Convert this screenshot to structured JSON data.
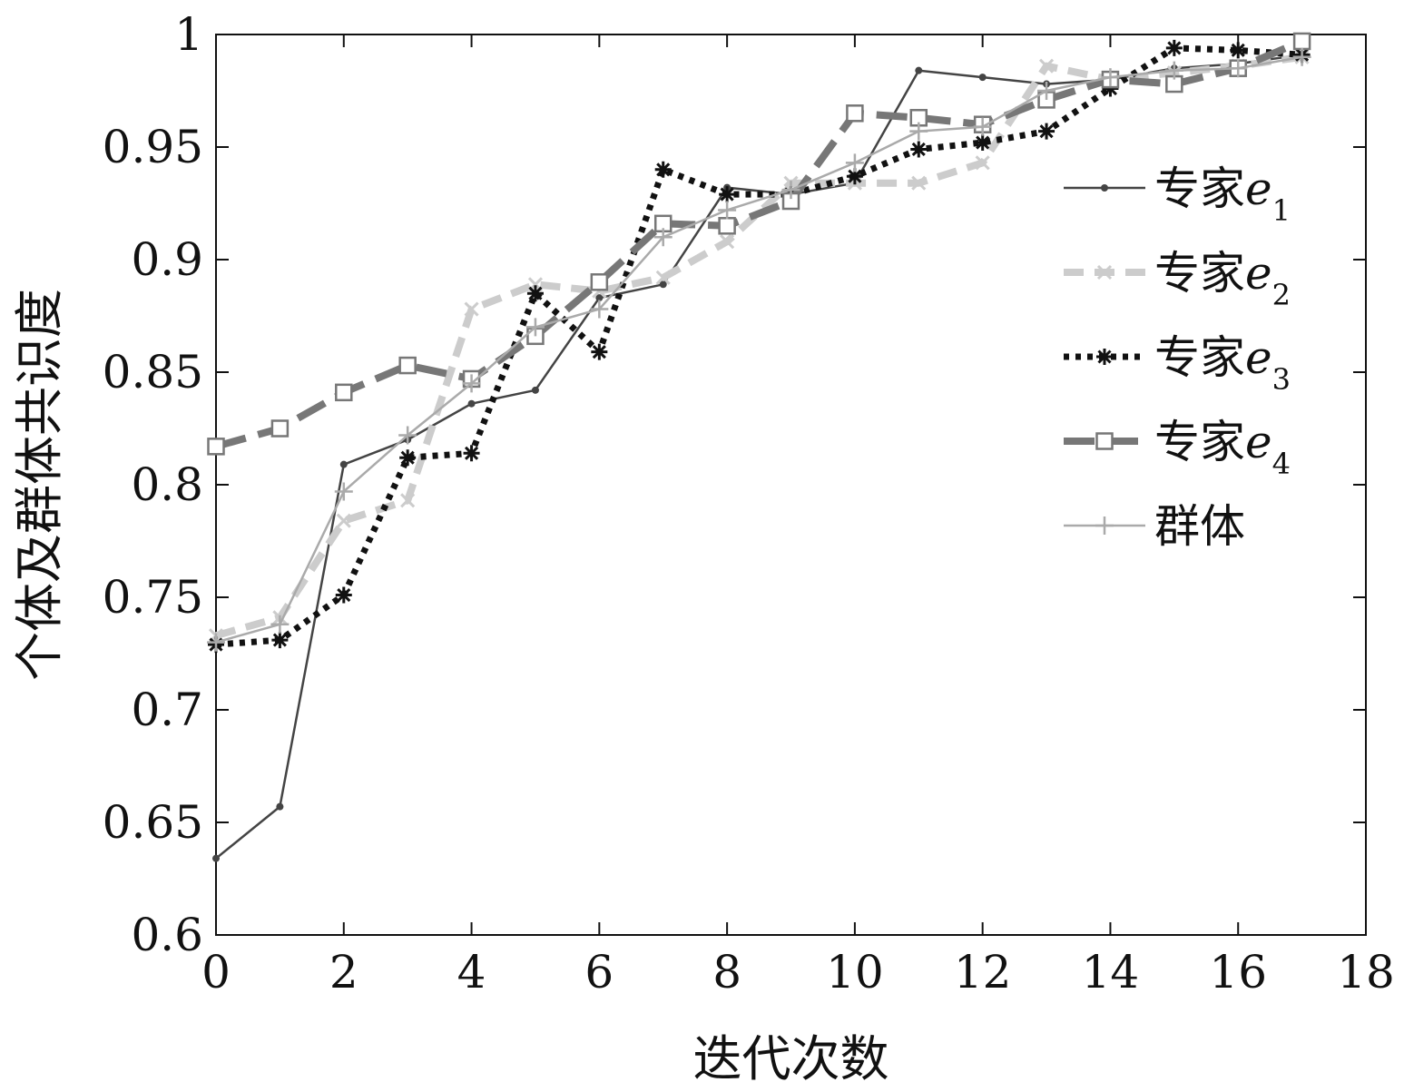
{
  "chart_data": {
    "type": "line",
    "title": "",
    "xlabel": "迭代次数",
    "ylabel": "个体及群体共识度",
    "xlim": [
      0,
      18
    ],
    "ylim": [
      0.6,
      1
    ],
    "xticks": [
      0,
      2,
      4,
      6,
      8,
      10,
      12,
      14,
      16,
      18
    ],
    "xtick_labels": [
      "0",
      "2",
      "4",
      "6",
      "8",
      "10",
      "12",
      "14",
      "16",
      "18"
    ],
    "yticks": [
      0.6,
      0.65,
      0.7,
      0.75,
      0.8,
      0.85,
      0.9,
      0.95,
      1
    ],
    "ytick_labels": [
      "0.6",
      "0.65",
      "0.7",
      "0.75",
      "0.8",
      "0.85",
      "0.9",
      "0.95",
      "1"
    ],
    "grid": false,
    "legend_position": "right",
    "x": [
      0,
      1,
      2,
      3,
      4,
      5,
      6,
      7,
      8,
      9,
      10,
      11,
      12,
      13,
      14,
      15,
      16,
      17
    ],
    "series": [
      {
        "name": "专家e₁",
        "legend_prefix": "专家",
        "legend_var": "e",
        "legend_sub": "1",
        "color": "#444444",
        "marker": "dot",
        "dash": "solid",
        "values": [
          0.634,
          0.657,
          0.809,
          0.82,
          0.836,
          0.842,
          0.883,
          0.889,
          0.932,
          0.929,
          0.934,
          0.984,
          0.981,
          0.978,
          0.98,
          0.985,
          0.987,
          0.991
        ]
      },
      {
        "name": "专家e₂",
        "legend_prefix": "专家",
        "legend_var": "e",
        "legend_sub": "2",
        "color": "#cccccc",
        "marker": "x",
        "dash": "dash",
        "values": [
          0.733,
          0.741,
          0.784,
          0.793,
          0.878,
          0.889,
          0.886,
          0.892,
          0.908,
          0.934,
          0.934,
          0.934,
          0.943,
          0.986,
          0.98,
          0.983,
          0.986,
          0.99
        ]
      },
      {
        "name": "专家e₃",
        "legend_prefix": "专家",
        "legend_var": "e",
        "legend_sub": "3",
        "color": "#111111",
        "marker": "star",
        "dash": "dot",
        "values": [
          0.729,
          0.731,
          0.751,
          0.812,
          0.814,
          0.885,
          0.859,
          0.94,
          0.929,
          0.929,
          0.937,
          0.949,
          0.952,
          0.957,
          0.976,
          0.994,
          0.993,
          0.991
        ]
      },
      {
        "name": "专家e₄",
        "legend_prefix": "专家",
        "legend_var": "e",
        "legend_sub": "4",
        "color": "#777777",
        "marker": "square",
        "dash": "longdash",
        "values": [
          0.817,
          0.825,
          0.841,
          0.853,
          0.847,
          0.866,
          0.89,
          0.916,
          0.915,
          0.926,
          0.965,
          0.963,
          0.96,
          0.971,
          0.98,
          0.978,
          0.985,
          0.997
        ]
      },
      {
        "name": "群体",
        "legend_prefix": "群体",
        "legend_var": "",
        "legend_sub": "",
        "color": "#aaaaaa",
        "marker": "plus",
        "dash": "solid",
        "values": [
          0.73,
          0.738,
          0.797,
          0.822,
          0.845,
          0.87,
          0.878,
          0.91,
          0.922,
          0.931,
          0.943,
          0.957,
          0.959,
          0.975,
          0.981,
          0.984,
          0.985,
          0.99
        ]
      }
    ]
  }
}
